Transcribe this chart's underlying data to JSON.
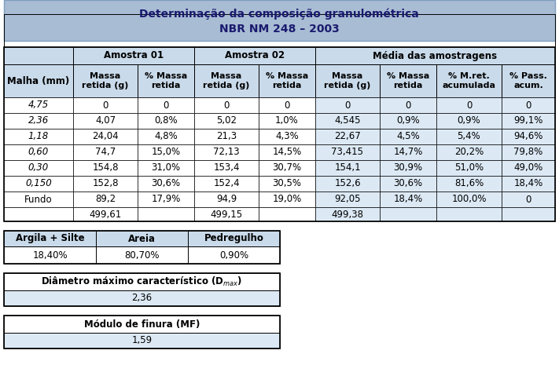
{
  "title_line1": "Determinação da composição granulométrica",
  "title_line2": "NBR NM 248 – 2003",
  "title_bg": "#a8bcd4",
  "header_bg": "#c9daea",
  "data_bg_media": "#dce9f5",
  "white_bg": "#ffffff",
  "main_table": {
    "col_headers_row2": [
      "Malha (mm)",
      "Massa\nretida (g)",
      "% Massa\nretida",
      "Massa\nretida (g)",
      "% Massa\nretida",
      "Massa\nretida (g)",
      "% Massa\nretida",
      "% M.ret.\nacumulada",
      "% Pass.\nacum."
    ],
    "rows": [
      [
        "4,75",
        "0",
        "0",
        "0",
        "0",
        "0",
        "0",
        "0",
        "0"
      ],
      [
        "2,36",
        "4,07",
        "0,8%",
        "5,02",
        "1,0%",
        "4,545",
        "0,9%",
        "0,9%",
        "99,1%"
      ],
      [
        "1,18",
        "24,04",
        "4,8%",
        "21,3",
        "4,3%",
        "22,67",
        "4,5%",
        "5,4%",
        "94,6%"
      ],
      [
        "0,60",
        "74,7",
        "15,0%",
        "72,13",
        "14,5%",
        "73,415",
        "14,7%",
        "20,2%",
        "79,8%"
      ],
      [
        "0,30",
        "154,8",
        "31,0%",
        "153,4",
        "30,7%",
        "154,1",
        "30,9%",
        "51,0%",
        "49,0%"
      ],
      [
        "0,150",
        "152,8",
        "30,6%",
        "152,4",
        "30,5%",
        "152,6",
        "30,6%",
        "81,6%",
        "18,4%"
      ],
      [
        "Fundo",
        "89,2",
        "17,9%",
        "94,9",
        "19,0%",
        "92,05",
        "18,4%",
        "100,0%",
        "0"
      ],
      [
        "",
        "499,61",
        "",
        "499,15",
        "",
        "499,38",
        "",
        "",
        ""
      ]
    ]
  },
  "bottom_table1": {
    "headers": [
      "Argila + Silte",
      "Areia",
      "Pedregulho"
    ],
    "values": [
      "18,40%",
      "80,70%",
      "0,90%"
    ]
  },
  "bottom_table2": {
    "header": "Diâmetro máximo característico (D$_{max}$)",
    "value": "2,36"
  },
  "bottom_table3": {
    "header": "Módulo de finura (MF)",
    "value": "1,59"
  }
}
